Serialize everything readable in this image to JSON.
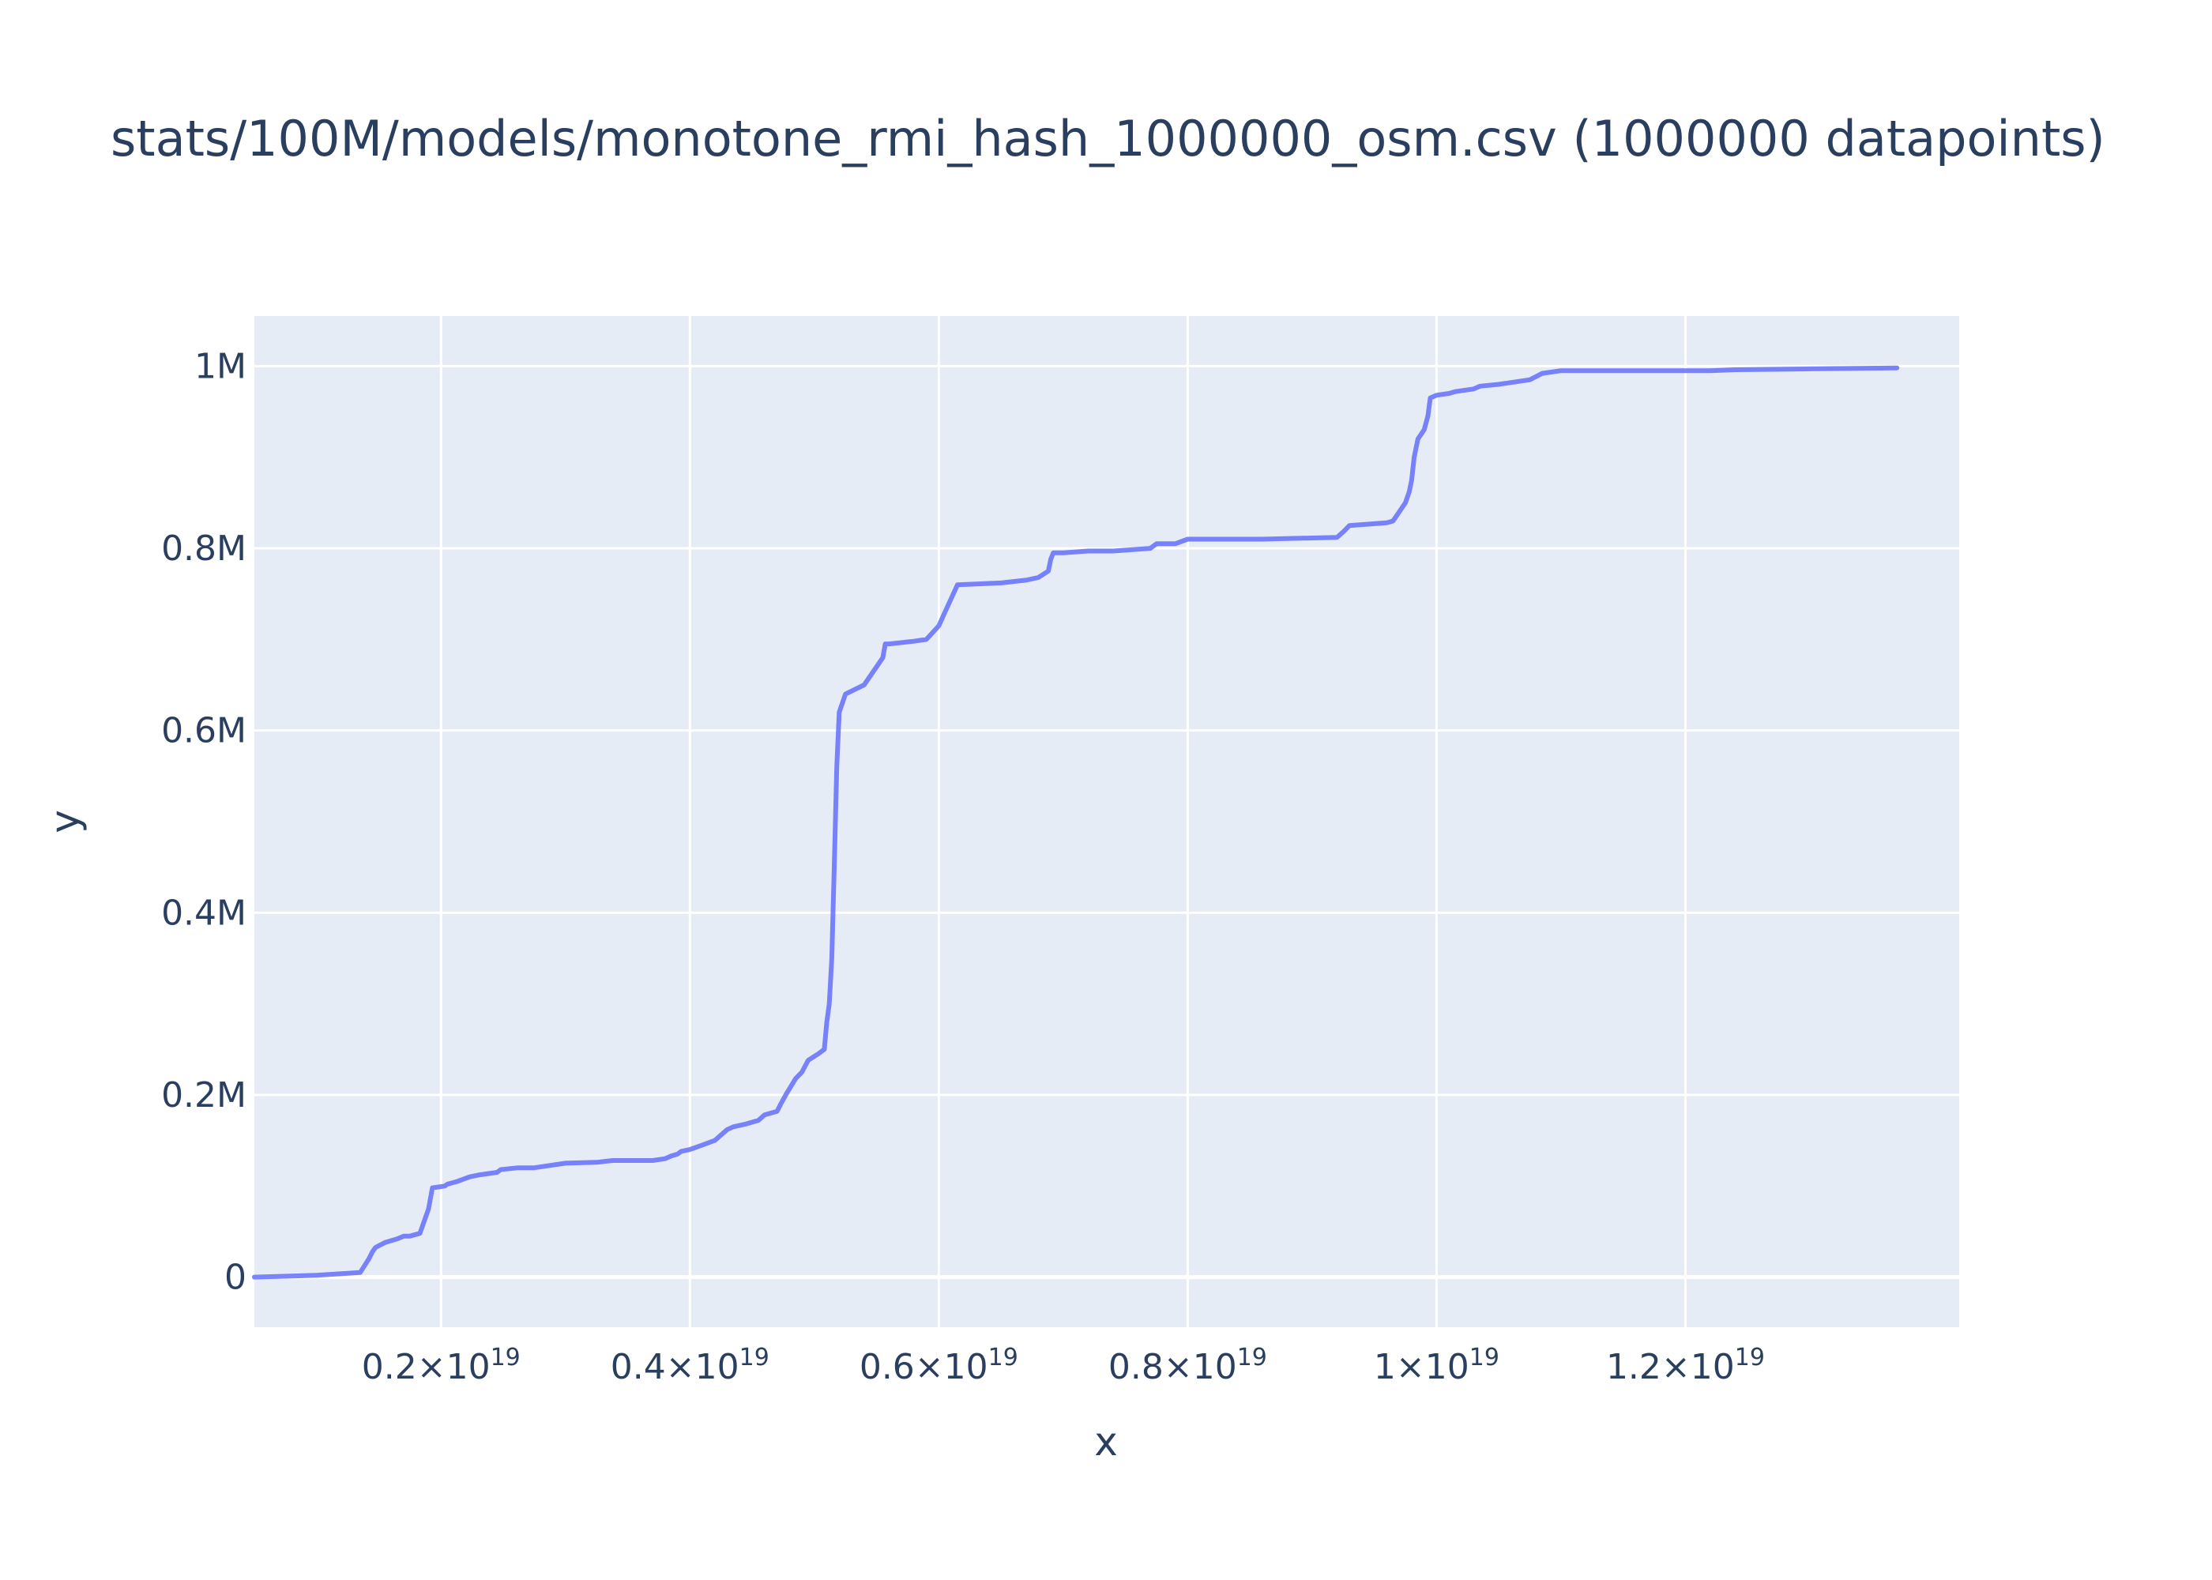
{
  "chart_data": {
    "type": "line",
    "title": "stats/100M/models/monotone_rmi_hash_1000000_osm.csv (1000000 datapoints)",
    "xlabel": "x",
    "ylabel": "y",
    "xlim": [
      5e+17,
      1.42e+19
    ],
    "ylim": [
      -55000,
      1055000
    ],
    "grid": true,
    "legend": "none",
    "colors": {
      "line": "#636efa",
      "plot_bg": "#e5ecf6",
      "grid": "#ffffff",
      "text": "#2a3f5f"
    },
    "x_ticks": [
      {
        "value": 2e+18,
        "mantissa": "0.2",
        "base": "×10",
        "exp": "19"
      },
      {
        "value": 4e+18,
        "mantissa": "0.4",
        "base": "×10",
        "exp": "19"
      },
      {
        "value": 6e+18,
        "mantissa": "0.6",
        "base": "×10",
        "exp": "19"
      },
      {
        "value": 8e+18,
        "mantissa": "0.8",
        "base": "×10",
        "exp": "19"
      },
      {
        "value": 1e+19,
        "mantissa": "1",
        "base": "×10",
        "exp": "19"
      },
      {
        "value": 1.2e+19,
        "mantissa": "1.2",
        "base": "×10",
        "exp": "19"
      }
    ],
    "y_ticks": [
      {
        "value": 0,
        "label": "0"
      },
      {
        "value": 200000,
        "label": "0.2M"
      },
      {
        "value": 400000,
        "label": "0.4M"
      },
      {
        "value": 600000,
        "label": "0.6M"
      },
      {
        "value": 800000,
        "label": "0.8M"
      },
      {
        "value": 1000000,
        "label": "1M"
      }
    ],
    "series": [
      {
        "name": "monotone_rmi_hash_1000000_osm",
        "x": [
          5e+17,
          1e+18,
          1.35e+18,
          1.42e+18,
          1.45e+18,
          1.47e+18,
          1.48e+18,
          1.55e+18,
          1.65e+18,
          1.7e+18,
          1.75e+18,
          1.83e+18,
          1.9e+18,
          1.93e+18,
          2.03e+18,
          2.05e+18,
          2.13e+18,
          2.23e+18,
          2.3e+18,
          2.45e+18,
          2.48e+18,
          2.62e+18,
          2.75e+18,
          3e+18,
          3.25e+18,
          3.38e+18,
          3.45e+18,
          3.6e+18,
          3.7e+18,
          3.8e+18,
          3.85e+18,
          3.9e+18,
          3.93e+18,
          4e+18,
          4.1e+18,
          4.2e+18,
          4.3e+18,
          4.35e+18,
          4.45e+18,
          4.55e+18,
          4.6e+18,
          4.65e+18,
          4.7e+18,
          4.73e+18,
          4.77e+18,
          4.85e+18,
          4.9e+18,
          4.95e+18,
          5.03e+18,
          5.08e+18,
          5.1e+18,
          5.12e+18,
          5.14e+18,
          5.16e+18,
          5.18e+18,
          5.2e+18,
          5.25e+18,
          5.4e+18,
          5.45e+18,
          5.5e+18,
          5.55e+18,
          5.57e+18,
          5.6e+18,
          5.8e+18,
          5.9e+18,
          6e+18,
          6.05e+18,
          6.1e+18,
          6.15e+18,
          6.5e+18,
          6.7e+18,
          6.8e+18,
          6.88e+18,
          6.9e+18,
          6.92e+18,
          7e+18,
          7.2e+18,
          7.4e+18,
          7.7e+18,
          7.75e+18,
          7.9e+18,
          8e+18,
          8.3e+18,
          8.6e+18,
          9.2e+18,
          9.2e+18,
          9.25e+18,
          9.3e+18,
          9.6e+18,
          9.65e+18,
          9.7e+18,
          9.75e+18,
          9.78e+18,
          9.8e+18,
          9.82e+18,
          9.85e+18,
          9.9e+18,
          9.93e+18,
          9.95e+18,
          1e+19,
          1.01e+19,
          1.015e+19,
          1.03e+19,
          1.035e+19,
          1.05e+19,
          1.06e+19,
          1.075e+19,
          1.085e+19,
          1.1e+19,
          1.22e+19,
          1.24e+19,
          1.3e+19,
          1.37e+19
        ],
        "y": [
          0,
          2000,
          5000,
          20000,
          28000,
          32000,
          33000,
          38000,
          42000,
          45000,
          45000,
          48000,
          75000,
          98000,
          100000,
          102000,
          105000,
          110000,
          112000,
          115000,
          118000,
          120000,
          120000,
          125000,
          126000,
          128000,
          128000,
          128000,
          128000,
          130000,
          133000,
          135000,
          138000,
          140000,
          145000,
          150000,
          162000,
          165000,
          168000,
          172000,
          178000,
          180000,
          182000,
          190000,
          200000,
          218000,
          225000,
          238000,
          245000,
          250000,
          280000,
          300000,
          350000,
          450000,
          560000,
          620000,
          640000,
          650000,
          660000,
          670000,
          680000,
          695000,
          695000,
          698000,
          700000,
          715000,
          730000,
          745000,
          760000,
          762000,
          765000,
          768000,
          775000,
          788000,
          795000,
          795000,
          797000,
          797000,
          800000,
          805000,
          805000,
          810000,
          810000,
          810000,
          812000,
          812000,
          818000,
          825000,
          828000,
          830000,
          840000,
          850000,
          862000,
          875000,
          900000,
          920000,
          930000,
          945000,
          965000,
          968000,
          970000,
          972000,
          975000,
          978000,
          980000,
          982000,
          985000,
          992000,
          995000,
          995000,
          996000,
          997000,
          998000
        ]
      }
    ]
  }
}
